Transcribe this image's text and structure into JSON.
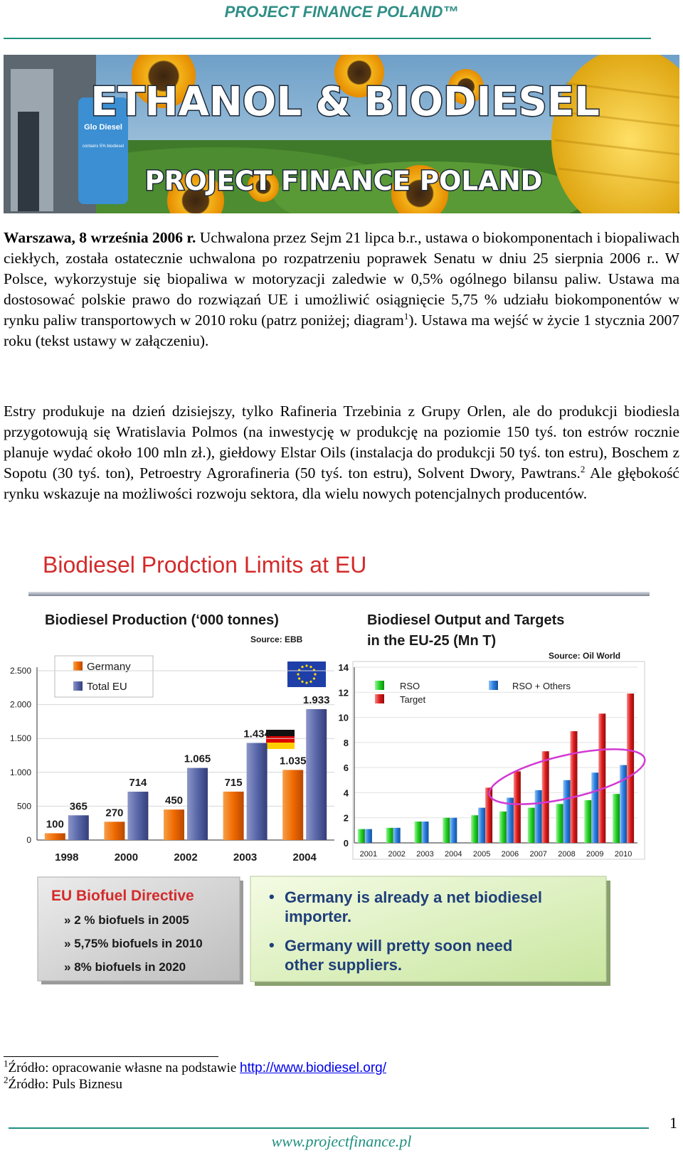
{
  "header": {
    "title": "PROJECT FINANCE POLAND™"
  },
  "banner": {
    "title_line1": "ETHANOL & BIODIESEL",
    "title_line2": "PROJECT FINANCE POLAND",
    "pump_label": "Glo Diesel",
    "pump_small": "contains 5% biodiesel"
  },
  "article": {
    "p1_bold": "Warszawa, 8 września 2006 r.",
    "p1_a": " Uchwalona przez Sejm 21 lipca b.r., ustawa o biokomponentach i biopaliwach ciekłych, została ostatecznie uchwalona po rozpatrzeniu poprawek Senatu w dniu 25 sierpnia 2006 r.. W Polsce, wykorzystuje się biopaliwa w motoryzacji zaledwie w 0,5% ogólnego bilansu paliw. Ustawa ma dostosować polskie prawo do rozwiązań UE i umożliwić osiągnięcie 5,75 % udziału biokomponentów w rynku paliw transportowych w 2010 roku (patrz poniżej; diagram",
    "p1_sup": "1",
    "p1_b": "). Ustawa ma wejść w życie 1 stycznia 2007 roku (tekst ustawy w załączeniu).",
    "p2_a": "Estry produkuje na dzień dzisiejszy, tylko Rafineria Trzebinia z Grupy Orlen, ale do produkcji biodiesla przygotowują się Wratislavia Polmos (na inwestycję w produkcję na poziomie 150 tyś. ton estrów rocznie planuje wydać około 100 mln zł.), giełdowy Elstar Oils (instalacja do produkcji 50 tyś. ton estru), Boschem z Sopotu (30 tyś. ton), Petroestry Agrorafineria (50 tyś. ton estru), Solvent Dwory, Pawtrans.",
    "p2_sup": "2",
    "p2_b": " Ale głębokość rynku wskazuje na możliwości rozwoju sektora, dla wielu nowych potencjalnych producentów."
  },
  "figure": {
    "title": "Biodiesel Prodction Limits at EU",
    "box_left_title": "EU Biofuel Directive",
    "box_left_items": [
      "2 % biofuels in 2005",
      "5,75% biofuels in 2010",
      "8% biofuels in 2020"
    ],
    "box_right_items": [
      "Germany is already a net biodiesel importer.",
      "Germany will pretty soon need other suppliers."
    ]
  },
  "chart_data": [
    {
      "type": "bar",
      "title": "Biodiesel Production (‘000 tonnes)",
      "source": "Source: EBB",
      "categories": [
        "1998",
        "2000",
        "2002",
        "2003",
        "2004"
      ],
      "series": [
        {
          "name": "Germany",
          "values": [
            100,
            270,
            450,
            715,
            1035
          ],
          "labels": [
            "100",
            "270",
            "450",
            "715",
            "1.035"
          ],
          "color": "#f06a00"
        },
        {
          "name": "Total EU",
          "values": [
            365,
            714,
            1065,
            1434,
            1933
          ],
          "labels": [
            "365",
            "714",
            "1.065",
            "1.434",
            "1.933"
          ],
          "color": "#5866a8"
        }
      ],
      "yticks": [
        0,
        500,
        1000,
        1500,
        2000,
        2500
      ],
      "ytick_labels": [
        "0",
        "500",
        "1.000",
        "1.500",
        "2.000",
        "2.500"
      ],
      "ylim": [
        0,
        2500
      ],
      "legend": "top-left"
    },
    {
      "type": "bar",
      "title_line1": "Biodiesel Output and Targets",
      "title_line2": "in the EU-25 (Mn T)",
      "source": "Source: Oil World",
      "categories": [
        "2001",
        "2002",
        "2003",
        "2004",
        "2005",
        "2006",
        "2007",
        "2008",
        "2009",
        "2010"
      ],
      "series": [
        {
          "name": "RSO",
          "values": [
            1.1,
            1.2,
            1.7,
            2.0,
            2.2,
            2.5,
            2.8,
            3.1,
            3.4,
            3.9
          ],
          "color": "#22d322"
        },
        {
          "name": "RSO + Others",
          "values": [
            1.1,
            1.2,
            1.7,
            2.0,
            2.8,
            3.6,
            4.2,
            5.0,
            5.6,
            6.2
          ],
          "color": "#2a7de0"
        },
        {
          "name": "Target",
          "values": [
            null,
            null,
            null,
            null,
            4.4,
            5.7,
            7.3,
            8.9,
            10.3,
            11.9
          ],
          "color": "#e01a1a"
        }
      ],
      "yticks": [
        0,
        2,
        4,
        6,
        8,
        10,
        12,
        14
      ],
      "ylim": [
        0,
        14
      ],
      "legend": "top"
    }
  ],
  "footnotes": [
    {
      "num": "1",
      "text": "Źródło: opracowanie własne na podstawie ",
      "link": "http://www.biodiesel.org/"
    },
    {
      "num": "2",
      "text": "Źródło: Puls Biznesu",
      "link": ""
    }
  ],
  "page_number": "1",
  "footer": {
    "url": "www.projectfinance.pl"
  },
  "colors": {
    "accent": "#1f8f7f",
    "header": "#2f8f86",
    "figure_title": "#d42a2a",
    "link": "#0000ee"
  }
}
